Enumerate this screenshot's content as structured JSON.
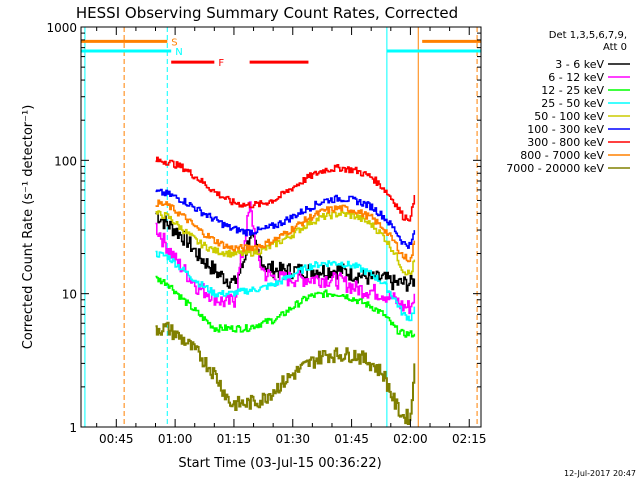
{
  "chart_data": {
    "type": "line",
    "title": "HESSI Observing Summary Count Rates, Corrected",
    "xlabel": "Start Time (03-Jul-15 00:36:22)",
    "ylabel": "Corrected Count Rate (s⁻¹ detector⁻¹)",
    "yscale": "log",
    "ylim": [
      1,
      1000
    ],
    "xlim_minutes": [
      36,
      138
    ],
    "x_tick_labels": [
      "00:45",
      "01:00",
      "01:15",
      "01:30",
      "01:45",
      "02:00",
      "02:15"
    ],
    "x_tick_minutes": [
      45,
      60,
      75,
      90,
      105,
      120,
      135
    ],
    "y_tick_labels": [
      "1",
      "10",
      "100",
      "1000"
    ],
    "y_tick_values": [
      1,
      10,
      100,
      1000
    ],
    "legend_title": [
      "Det 1,3,5,6,7,9,",
      "Att 0"
    ],
    "legend_position": "right",
    "series": [
      {
        "name": "3 - 6 keV",
        "color": "#000000",
        "x": [
          55,
          57,
          60,
          63,
          66,
          69,
          71,
          73,
          75,
          77,
          79,
          81,
          83,
          86,
          90,
          94,
          98,
          102,
          106,
          110,
          113,
          116,
          118,
          120,
          121
        ],
        "y": [
          40,
          35,
          30,
          25,
          19,
          16,
          14,
          13,
          12,
          16,
          28,
          20,
          16,
          15,
          15,
          15,
          15,
          15,
          14,
          13,
          13,
          12,
          12,
          12,
          13
        ]
      },
      {
        "name": "6 - 12 keV",
        "color": "#ff00ff",
        "x": [
          55,
          57,
          60,
          63,
          66,
          69,
          71,
          73,
          75,
          77,
          79,
          80,
          81,
          83,
          86,
          90,
          94,
          98,
          102,
          106,
          110,
          113,
          116,
          118,
          120,
          121
        ],
        "y": [
          32,
          25,
          18,
          14,
          11,
          10,
          9,
          8.5,
          9,
          20,
          45,
          30,
          18,
          14,
          13,
          13,
          13,
          13,
          12.5,
          11,
          10.5,
          10,
          9,
          8,
          8,
          10
        ]
      },
      {
        "name": "12 - 25 keV",
        "color": "#00ff00",
        "x": [
          55,
          58,
          62,
          66,
          70,
          74,
          78,
          82,
          86,
          90,
          94,
          98,
          102,
          106,
          110,
          113,
          116,
          118,
          120,
          121
        ],
        "y": [
          13,
          12,
          9,
          7,
          5.5,
          5.5,
          5.5,
          6,
          6.5,
          8,
          9.5,
          10,
          10,
          9,
          8,
          7,
          5.5,
          5,
          5,
          5
        ]
      },
      {
        "name": "25 - 50 keV",
        "color": "#00ffff",
        "x": [
          55,
          58,
          62,
          66,
          70,
          74,
          78,
          82,
          86,
          90,
          94,
          98,
          102,
          106,
          110,
          113,
          116,
          118,
          120,
          121
        ],
        "y": [
          20,
          19,
          15,
          12,
          10,
          10,
          10.5,
          11,
          12,
          14,
          16,
          17,
          17,
          16,
          14,
          12,
          9,
          7,
          6.5,
          8
        ]
      },
      {
        "name": "50 - 100 keV",
        "color": "#cccc00",
        "x": [
          55,
          58,
          62,
          66,
          70,
          74,
          78,
          82,
          86,
          90,
          94,
          98,
          102,
          106,
          110,
          113,
          116,
          118,
          120,
          121
        ],
        "y": [
          40,
          38,
          30,
          24,
          21,
          20,
          20,
          21,
          24,
          28,
          34,
          38,
          40,
          38,
          33,
          27,
          20,
          15,
          14,
          18
        ]
      },
      {
        "name": "100 - 300 keV",
        "color": "#0000ff",
        "x": [
          55,
          58,
          62,
          66,
          70,
          74,
          78,
          82,
          86,
          90,
          94,
          98,
          102,
          106,
          110,
          113,
          116,
          118,
          120,
          121
        ],
        "y": [
          58,
          56,
          50,
          42,
          36,
          31,
          29,
          30,
          33,
          38,
          44,
          50,
          52,
          50,
          45,
          38,
          30,
          24,
          23,
          30
        ]
      },
      {
        "name": "300 - 800 keV",
        "color": "#ff0000",
        "x": [
          55,
          58,
          62,
          66,
          70,
          74,
          78,
          82,
          86,
          90,
          94,
          98,
          102,
          106,
          110,
          113,
          116,
          118,
          120,
          121
        ],
        "y": [
          100,
          98,
          88,
          72,
          58,
          49,
          46,
          47,
          52,
          63,
          75,
          85,
          88,
          84,
          75,
          62,
          48,
          38,
          37,
          55
        ]
      },
      {
        "name": "800 - 7000 keV",
        "color": "#ff8000",
        "x": [
          55,
          58,
          62,
          66,
          70,
          74,
          78,
          82,
          86,
          90,
          94,
          98,
          102,
          106,
          110,
          113,
          116,
          118,
          120,
          121
        ],
        "y": [
          48,
          46,
          38,
          30,
          25,
          22,
          22,
          23,
          26,
          31,
          37,
          42,
          44,
          42,
          37,
          31,
          24,
          19,
          18,
          25
        ]
      },
      {
        "name": "7000 - 20000 keV",
        "color": "#808000",
        "x": [
          55,
          58,
          62,
          66,
          70,
          74,
          78,
          82,
          86,
          90,
          94,
          98,
          102,
          106,
          110,
          113,
          116,
          118,
          120,
          121
        ],
        "y": [
          5.5,
          5.5,
          4.5,
          3.5,
          2.5,
          1.5,
          1.5,
          1.6,
          2,
          2.5,
          3,
          3.5,
          3.5,
          3.5,
          3,
          2.5,
          1.5,
          1.2,
          1.2,
          3
        ]
      }
    ],
    "event_bars": [
      {
        "label": "S",
        "color": "#ff8000",
        "x": [
          [
            36,
            58
          ],
          [
            123,
            138
          ]
        ],
        "y": 780
      },
      {
        "label": "N",
        "color": "#00ffff",
        "x": [
          [
            36,
            59
          ],
          [
            114,
            138
          ]
        ],
        "y": 660
      },
      {
        "label": "F",
        "color": "#ff0000",
        "x": [
          [
            59,
            70
          ],
          [
            79,
            94
          ]
        ],
        "y": 545
      }
    ],
    "vertical_markers": [
      {
        "color": "#ff8000",
        "style": "dashed",
        "x": 47
      },
      {
        "color": "#00ffff",
        "style": "dashed",
        "x": 58
      },
      {
        "color": "#00ffff",
        "style": "solid",
        "x": 37
      },
      {
        "color": "#00ffff",
        "style": "solid",
        "x": 114
      },
      {
        "color": "#ff8000",
        "style": "solid",
        "x": 122
      },
      {
        "color": "#ff8000",
        "style": "dashed",
        "x": 137
      }
    ],
    "footer_date": "12-Jul-2017 20:47"
  }
}
